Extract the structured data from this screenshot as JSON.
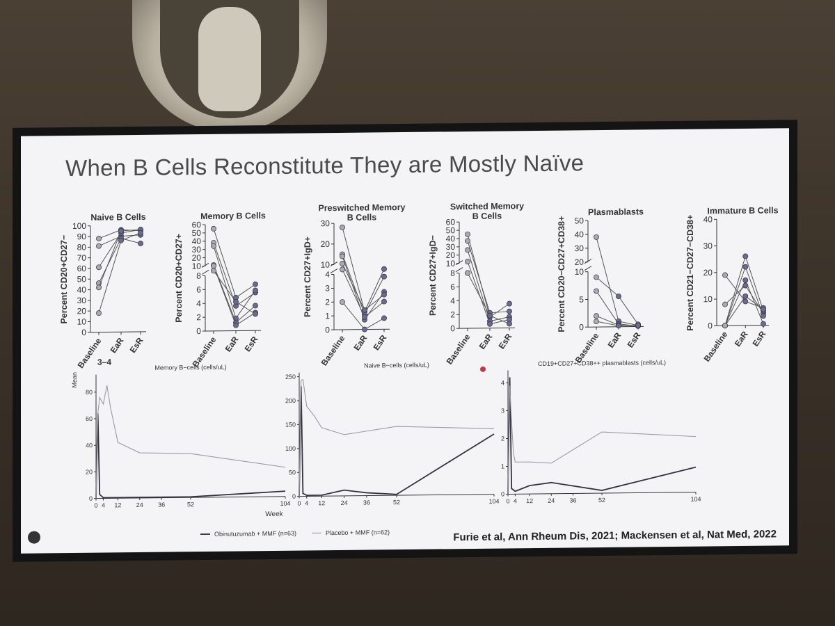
{
  "slide": {
    "title": "When B Cells Reconstitute They are Mostly Naïve",
    "citation": "Furie et al, Ann Rheum Dis, 2021; Mackensen et al, Nat Med, 2022",
    "stray_label": "3–4"
  },
  "colors": {
    "dark_line": "#333340",
    "light_line": "#9a9aa4",
    "dot_light": "#a9a9b5",
    "dot_dark": "#6a6a95",
    "axis": "#333333"
  },
  "chart_data": [
    {
      "type": "line",
      "title": "Naive B Cells",
      "ylabel": "Percent CD20+CD27−",
      "categories": [
        "Baseline",
        "EaR",
        "EsR"
      ],
      "yticks": [
        0,
        10,
        20,
        30,
        40,
        50,
        60,
        70,
        80,
        90,
        100
      ],
      "ylim": [
        0,
        100
      ],
      "series": [
        {
          "values": [
            88,
            96,
            95
          ]
        },
        {
          "values": [
            81,
            90,
            91
          ]
        },
        {
          "values": [
            61,
            93,
            96
          ]
        },
        {
          "values": [
            46,
            88,
            83
          ]
        },
        {
          "values": [
            42,
            95,
            96
          ]
        },
        {
          "values": [
            18,
            86,
            93
          ]
        }
      ]
    },
    {
      "type": "line",
      "title": "Memory B Cells",
      "ylabel": "Percent CD20+CD27+",
      "categories": [
        "Baseline",
        "EaR",
        "EsR"
      ],
      "yticks_lower": [
        0,
        2,
        4,
        6,
        8
      ],
      "yticks_upper": [
        10,
        20,
        30,
        40,
        50,
        60
      ],
      "broken_axis": true,
      "series": [
        {
          "values": [
            55,
            4.8,
            6.7
          ]
        },
        {
          "values": [
            38,
            3.6,
            5.5
          ]
        },
        {
          "values": [
            34,
            1.8,
            5.8
          ]
        },
        {
          "values": [
            11,
            1.2,
            3.6
          ]
        },
        {
          "values": [
            10,
            0.8,
            2.6
          ]
        },
        {
          "values": [
            9.5,
            4.2,
            2.4
          ]
        }
      ]
    },
    {
      "type": "line",
      "title": "Preswitched Memory B Cells",
      "ylabel": "Percent CD27+IgD+",
      "categories": [
        "Baseline",
        "EaR",
        "EsR"
      ],
      "yticks_lower": [
        0,
        1,
        2,
        3,
        4
      ],
      "yticks_upper": [
        10,
        20,
        30
      ],
      "broken_axis": true,
      "series": [
        {
          "values": [
            28,
            1.3,
            4.4
          ]
        },
        {
          "values": [
            15,
            1.1,
            3.8
          ]
        },
        {
          "values": [
            14,
            0.7,
            2.7
          ]
        },
        {
          "values": [
            10.5,
            1.4,
            2.5
          ]
        },
        {
          "values": [
            7.5,
            0.9,
            2.0
          ]
        },
        {
          "values": [
            2.0,
            0.0,
            0.8
          ]
        }
      ]
    },
    {
      "type": "line",
      "title": "Switched Memory B Cells",
      "ylabel": "Percent CD27+IgD−",
      "categories": [
        "Baseline",
        "EaR",
        "EsR"
      ],
      "yticks_lower": [
        0,
        2,
        4,
        6,
        8
      ],
      "yticks_upper": [
        10,
        20,
        30,
        40,
        50,
        60
      ],
      "broken_axis": true,
      "series": [
        {
          "values": [
            45,
            1.6,
            3.5
          ]
        },
        {
          "values": [
            37,
            2.2,
            2.4
          ]
        },
        {
          "values": [
            26,
            1.0,
            1.6
          ]
        },
        {
          "values": [
            12,
            0.6,
            1.2
          ]
        },
        {
          "values": [
            8,
            1.8,
            0.6
          ]
        }
      ]
    },
    {
      "type": "line",
      "title": "Plasmablasts",
      "ylabel": "Percent CD20−CD27+CD38+",
      "categories": [
        "Baseline",
        "EaR",
        "EsR"
      ],
      "yticks_lower": [
        0,
        5,
        10
      ],
      "yticks_upper": [
        20,
        30,
        40,
        50
      ],
      "broken_axis": true,
      "series": [
        {
          "values": [
            38,
            1.0,
            0.2
          ]
        },
        {
          "values": [
            9,
            5.5,
            0.4
          ]
        },
        {
          "values": [
            6.5,
            0.5,
            0.1
          ]
        },
        {
          "values": [
            2,
            0.3,
            0.1
          ]
        },
        {
          "values": [
            1,
            0.2,
            0.2
          ]
        }
      ]
    },
    {
      "type": "line",
      "title": "Immature B Cells",
      "ylabel": "Percent CD21−CD27−CD38+",
      "categories": [
        "Baseline",
        "EaR",
        "EsR"
      ],
      "yticks": [
        0,
        10,
        20,
        30,
        40
      ],
      "ylim": [
        0,
        40
      ],
      "series": [
        {
          "values": [
            19,
            9,
            6.5
          ]
        },
        {
          "values": [
            8,
            15,
            4.5
          ]
        },
        {
          "values": [
            0,
            26,
            5.5
          ]
        },
        {
          "values": [
            0,
            22,
            3.5
          ]
        },
        {
          "values": [
            0,
            17,
            0.5
          ]
        },
        {
          "values": [
            0,
            11,
            6.0
          ]
        }
      ]
    },
    {
      "type": "line",
      "title": "Memory B−cells (cells/uL)",
      "ylabel": "Mean",
      "xlabel": "Week",
      "xticks": [
        0,
        4,
        12,
        24,
        36,
        52,
        104
      ],
      "yticks": [
        0,
        20,
        40,
        60,
        80
      ],
      "ylim": [
        0,
        90
      ],
      "xlim": [
        0,
        104
      ],
      "series": [
        {
          "name": "Obinutuzumab + MMF (n=63)",
          "x": [
            0,
            1,
            2,
            4,
            12,
            24,
            52,
            104
          ],
          "values": [
            0,
            64,
            3,
            0.5,
            0.5,
            0.5,
            0.5,
            4
          ]
        },
        {
          "name": "Placebo + MMF (n=62)",
          "x": [
            0,
            1,
            2,
            4,
            6,
            8,
            12,
            24,
            52,
            104
          ],
          "values": [
            0,
            64,
            76,
            71,
            85,
            68,
            42,
            34,
            33,
            22
          ]
        }
      ]
    },
    {
      "type": "line",
      "title": "Naive B−cells (cells/uL)",
      "xticks": [
        0,
        4,
        12,
        24,
        36,
        52,
        104
      ],
      "yticks": [
        0,
        50,
        100,
        150,
        200,
        250
      ],
      "ylim": [
        0,
        250
      ],
      "xlim": [
        0,
        104
      ],
      "series": [
        {
          "name": "Obinutuzumab + MMF (n=63)",
          "x": [
            0,
            1,
            2,
            4,
            12,
            24,
            36,
            52,
            104
          ],
          "values": [
            0,
            230,
            6,
            2,
            2,
            12,
            6,
            2,
            126
          ]
        },
        {
          "name": "Placebo + MMF (n=62)",
          "x": [
            0,
            1,
            2,
            4,
            8,
            12,
            24,
            52,
            104
          ],
          "values": [
            0,
            242,
            244,
            188,
            168,
            143,
            128,
            144,
            137
          ]
        }
      ]
    },
    {
      "type": "line",
      "title": "CD19+CD27+CD38++ plasmablasts (cells/uL)",
      "xticks": [
        0,
        4,
        12,
        24,
        36,
        52,
        104
      ],
      "yticks": [
        0,
        1,
        2,
        3,
        4
      ],
      "ylim": [
        0,
        4.3
      ],
      "xlim": [
        0,
        104
      ],
      "series": [
        {
          "name": "Obinutuzumab + MMF (n=63)",
          "x": [
            0,
            1,
            2,
            4,
            12,
            24,
            52,
            104
          ],
          "values": [
            0,
            4.2,
            0.2,
            0.1,
            0.3,
            0.4,
            0.1,
            0.9
          ]
        },
        {
          "name": "Placebo + MMF (n=62)",
          "x": [
            0,
            1,
            2,
            3,
            4,
            12,
            24,
            52,
            104
          ],
          "values": [
            0,
            3.9,
            2.6,
            1.5,
            1.15,
            1.15,
            1.1,
            2.2,
            2.0
          ]
        }
      ]
    }
  ],
  "legend": {
    "items": [
      "Obinutuzumab + MMF (n=63)",
      "Placebo + MMF (n=62)"
    ]
  }
}
